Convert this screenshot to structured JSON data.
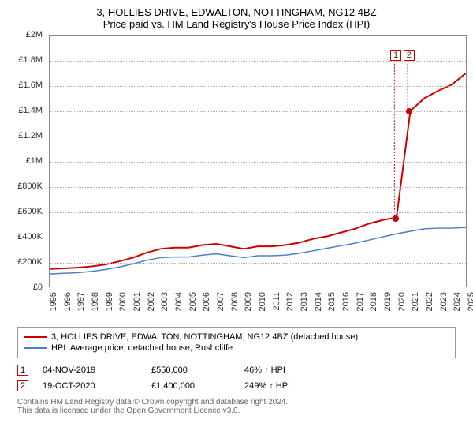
{
  "title": "3, HOLLIES DRIVE, EDWALTON, NOTTINGHAM, NG12 4BZ",
  "subtitle": "Price paid vs. HM Land Registry's House Price Index (HPI)",
  "chart": {
    "type": "line",
    "background": "#ffffff",
    "grid_color": "#b0b0b0",
    "border_color": "#888888",
    "x_years": [
      1995,
      1996,
      1997,
      1998,
      1999,
      2000,
      2001,
      2002,
      2003,
      2004,
      2005,
      2006,
      2007,
      2008,
      2009,
      2010,
      2011,
      2012,
      2013,
      2014,
      2015,
      2016,
      2017,
      2018,
      2019,
      2020,
      2021,
      2022,
      2023,
      2024,
      2025
    ],
    "ylim": [
      0,
      2000000
    ],
    "yticks": [
      0,
      200000,
      400000,
      600000,
      800000,
      1000000,
      1200000,
      1400000,
      1600000,
      1800000,
      2000000
    ],
    "ytick_labels": [
      "£0",
      "£200K",
      "£400K",
      "£600K",
      "£800K",
      "£1M",
      "£1.2M",
      "£1.4M",
      "£1.6M",
      "£1.8M",
      "£2M"
    ],
    "label_fontsize": 11,
    "series": [
      {
        "name": "3, HOLLIES DRIVE, EDWALTON, NOTTINGHAM, NG12 4BZ (detached house)",
        "color": "#cc0000",
        "line_width": 2,
        "values": [
          140000,
          145000,
          150000,
          160000,
          175000,
          200000,
          230000,
          270000,
          300000,
          310000,
          310000,
          330000,
          340000,
          320000,
          300000,
          320000,
          320000,
          330000,
          350000,
          380000,
          400000,
          430000,
          460000,
          500000,
          530000,
          550000,
          1400000,
          1500000,
          1560000,
          1610000,
          1700000
        ]
      },
      {
        "name": "HPI: Average price, detached house, Rushcliffe",
        "color": "#4a7ec7",
        "line_width": 1.5,
        "values": [
          100000,
          105000,
          110000,
          120000,
          135000,
          155000,
          180000,
          210000,
          230000,
          235000,
          235000,
          250000,
          260000,
          245000,
          230000,
          245000,
          245000,
          250000,
          265000,
          285000,
          305000,
          325000,
          345000,
          370000,
          395000,
          420000,
          440000,
          460000,
          465000,
          465000,
          470000
        ]
      }
    ],
    "markers": [
      {
        "label": "1",
        "x_year": 2019.85,
        "y_value": 550000,
        "top_y": 1800000
      },
      {
        "label": "2",
        "x_year": 2020.8,
        "y_value": 1400000,
        "top_y": 1800000
      }
    ]
  },
  "legend": {
    "items": [
      {
        "label": "3, HOLLIES DRIVE, EDWALTON, NOTTINGHAM, NG12 4BZ (detached house)",
        "color": "#cc0000"
      },
      {
        "label": "HPI: Average price, detached house, Rushcliffe",
        "color": "#4a7ec7"
      }
    ]
  },
  "data_rows": [
    {
      "num": "1",
      "date": "04-NOV-2019",
      "price": "£550,000",
      "delta": "46% ↑ HPI"
    },
    {
      "num": "2",
      "date": "19-OCT-2020",
      "price": "£1,400,000",
      "delta": "249% ↑ HPI"
    }
  ],
  "footer": {
    "line1": "Contains HM Land Registry data © Crown copyright and database right 2024.",
    "line2": "This data is licensed under the Open Government Licence v3.0."
  }
}
